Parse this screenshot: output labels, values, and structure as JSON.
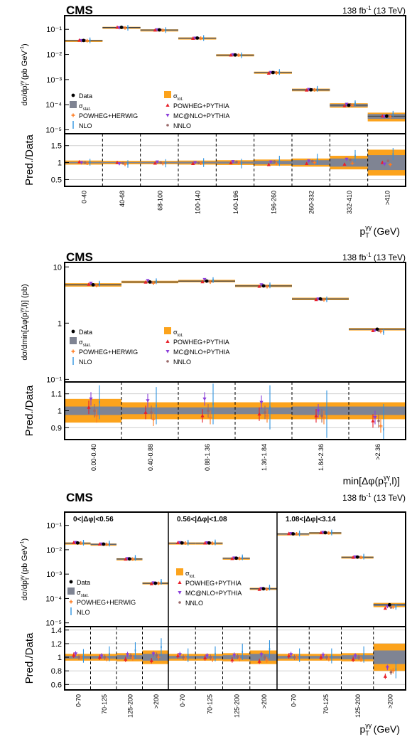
{
  "colors": {
    "tot": "#fca31c",
    "stat": "#7f8493",
    "herwig": "#ff7b1f",
    "nlo": "#2e93e0",
    "powpy": "#e8202a",
    "mcnlo": "#8b3fd9",
    "nnlo": "#9a6a6a",
    "data": "#000000",
    "grid": "#cfcfcf"
  },
  "legend": {
    "data": "Data",
    "tot": "σ",
    "tot_sub": "tot.",
    "stat": "σ",
    "stat_sub": "stat.",
    "powheg_herwig": "POWHEG+HERWIG",
    "powheg_pythia": "POWHEG+PYTHIA",
    "nlo": "NLO",
    "mcnlo": "MC@NLO+PYTHIA",
    "nnlo": "NNLO"
  },
  "chart_data": [
    {
      "type": "line",
      "experiment": "CMS",
      "lumi": "138 fb",
      "lumi_sup": "-1",
      "energy": " (13 TeV)",
      "ylabel": "dσ/dp",
      "ylabel_sub": "T",
      "ylabel_sup": "γγ",
      "ylabel_units": " (pb GeV",
      "ylabel_units_sup": "-1",
      "ylabel_close": ")",
      "ratio_ylabel": "Pred./Data",
      "xlabel": "p",
      "xlabel_sub": "T",
      "xlabel_sup": "γγ",
      "xlabel_units": " (GeV)",
      "yscale": "log",
      "ylim": [
        7e-06,
        0.35
      ],
      "yticks": [
        "10⁻¹",
        "10⁻²",
        "10⁻³",
        "10⁻⁴",
        "10⁻⁵"
      ],
      "ratio_ylim": [
        0.3,
        1.85
      ],
      "ratio_yticks": [
        "1.5",
        "1",
        "0.5"
      ],
      "categories": [
        "0-40",
        "40-68",
        "68-100",
        "100-140",
        "140-196",
        "196-260",
        "260-332",
        "332-410",
        ">410"
      ],
      "data": [
        0.036,
        0.12,
        0.095,
        0.045,
        0.0095,
        0.0019,
        0.00039,
        9.5e-05,
        3.5e-05
      ],
      "tot_unc_rel": [
        0.06,
        0.05,
        0.05,
        0.06,
        0.07,
        0.09,
        0.12,
        0.2,
        0.38
      ],
      "stat_unc_rel": [
        0.02,
        0.015,
        0.02,
        0.025,
        0.03,
        0.05,
        0.07,
        0.12,
        0.22
      ],
      "series": [
        {
          "name": "POWHEG+HERWIG",
          "ratio": [
            0.98,
            0.95,
            0.97,
            0.98,
            1.0,
            0.97,
            1.0,
            0.98,
            0.94
          ]
        },
        {
          "name": "POWHEG+PYTHIA",
          "ratio": [
            1.02,
            1.0,
            0.98,
            0.97,
            0.99,
            0.94,
            0.97,
            0.95,
            1.0
          ]
        },
        {
          "name": "MC@NLO+PYTHIA",
          "ratio": [
            1.0,
            0.97,
            1.02,
            1.0,
            1.03,
            1.02,
            1.05,
            1.1,
            0.96
          ]
        },
        {
          "name": "NLO",
          "ratio": [
            1.01,
            0.96,
            0.98,
            1.0,
            0.97,
            1.05,
            1.1,
            1.2,
            1.25
          ]
        },
        {
          "name": "NNLO",
          "ratio": [
            1.0,
            0.98,
            1.0,
            0.99,
            1.02,
            1.03,
            1.04,
            1.08,
            1.05
          ]
        }
      ]
    },
    {
      "type": "line",
      "experiment": "CMS",
      "lumi": "138 fb",
      "lumi_sup": "-1",
      "energy": " (13 TeV)",
      "ylabel": "dσ/dmin[Δφ(p",
      "ylabel_sub": "T",
      "ylabel_sup": "γγ",
      "ylabel_units": ",l)] (pb)",
      "ylabel_units_sup": "",
      "ylabel_close": "",
      "ratio_ylabel": "Pred./Data",
      "xlabel": "min[Δφ(p",
      "xlabel_sub": "T",
      "xlabel_sup": "γγ",
      "xlabel_units": ",l)]",
      "yscale": "log",
      "ylim": [
        0.09,
        12
      ],
      "yticks": [
        "10",
        "1",
        "10⁻¹"
      ],
      "ratio_ylim": [
        0.83,
        1.17
      ],
      "ratio_yticks": [
        "1.1",
        "1",
        "0.9"
      ],
      "categories": [
        "0.00-0.40",
        "0.40-0.88",
        "0.88-1.36",
        "1.36-1.84",
        "1.84-2.36",
        ">2.36"
      ],
      "data": [
        4.8,
        5.4,
        5.6,
        4.6,
        2.7,
        0.78
      ],
      "tot_unc_rel": [
        0.07,
        0.05,
        0.05,
        0.05,
        0.05,
        0.05
      ],
      "stat_unc_rel": [
        0.025,
        0.02,
        0.02,
        0.02,
        0.025,
        0.025
      ],
      "series": [
        {
          "name": "POWHEG+HERWIG",
          "ratio": [
            0.97,
            0.95,
            0.96,
            0.97,
            0.96,
            0.91
          ]
        },
        {
          "name": "POWHEG+PYTHIA",
          "ratio": [
            1.02,
            0.99,
            0.97,
            0.98,
            0.97,
            0.94
          ]
        },
        {
          "name": "MC@NLO+PYTHIA",
          "ratio": [
            1.07,
            1.06,
            1.07,
            1.05,
            1.0,
            0.96
          ]
        },
        {
          "name": "NLO",
          "ratio": [
            1.05,
            1.03,
            1.04,
            1.02,
            0.98,
            0.89
          ]
        },
        {
          "name": "NNLO",
          "ratio": [
            1.0,
            0.99,
            1.0,
            0.99,
            0.97,
            0.94
          ]
        }
      ]
    },
    {
      "type": "line",
      "experiment": "CMS",
      "lumi": "138 fb",
      "lumi_sup": "-1",
      "energy": " (13 TeV)",
      "ylabel": "dσ/dp",
      "ylabel_sub": "T",
      "ylabel_sup": "γγ",
      "ylabel_units": " (pb GeV",
      "ylabel_units_sup": "-1",
      "ylabel_close": ")",
      "ratio_ylabel": "Pred./Data",
      "xlabel": "p",
      "xlabel_sub": "T",
      "xlabel_sup": "γγ",
      "xlabel_units": " (GeV)",
      "yscale": "log",
      "ylim": [
        7e-06,
        0.35
      ],
      "yticks": [
        "10⁻¹",
        "10⁻²",
        "10⁻³",
        "10⁻⁴",
        "10⁻⁵"
      ],
      "ratio_ylim": [
        0.52,
        1.45
      ],
      "ratio_yticks": [
        "1.4",
        "1.2",
        "1",
        "0.8",
        "0.6"
      ],
      "regions": [
        {
          "label": "0<|Δφ|<0.56",
          "categories": [
            "0-70",
            "70-125",
            "125-200",
            ">200"
          ],
          "data": [
            0.019,
            0.017,
            0.0042,
            0.00042
          ],
          "tot_unc_rel": [
            0.05,
            0.05,
            0.06,
            0.1
          ],
          "stat_unc_rel": [
            0.02,
            0.02,
            0.03,
            0.05
          ],
          "series": [
            {
              "name": "POWHEG+HERWIG",
              "ratio": [
                1.0,
                0.98,
                0.99,
                1.0
              ]
            },
            {
              "name": "POWHEG+PYTHIA",
              "ratio": [
                1.03,
                1.0,
                0.97,
                0.95
              ]
            },
            {
              "name": "MC@NLO+PYTHIA",
              "ratio": [
                1.05,
                1.02,
                1.04,
                1.05
              ]
            },
            {
              "name": "NLO",
              "ratio": [
                1.02,
                1.05,
                1.1,
                1.15
              ]
            },
            {
              "name": "NNLO",
              "ratio": [
                1.0,
                1.0,
                1.02,
                1.03
              ]
            }
          ]
        },
        {
          "label": "0.56<|Δφ|<1.08",
          "categories": [
            "0-70",
            "70-125",
            "125-200",
            ">200"
          ],
          "data": [
            0.019,
            0.019,
            0.0045,
            0.00025
          ],
          "tot_unc_rel": [
            0.05,
            0.05,
            0.06,
            0.1
          ],
          "stat_unc_rel": [
            0.02,
            0.02,
            0.03,
            0.05
          ],
          "series": [
            {
              "name": "POWHEG+HERWIG",
              "ratio": [
                0.99,
                0.97,
                0.98,
                0.96
              ]
            },
            {
              "name": "POWHEG+PYTHIA",
              "ratio": [
                1.02,
                0.99,
                0.96,
                0.94
              ]
            },
            {
              "name": "MC@NLO+PYTHIA",
              "ratio": [
                1.04,
                1.02,
                1.03,
                1.04
              ]
            },
            {
              "name": "NLO",
              "ratio": [
                1.03,
                1.05,
                1.08,
                1.12
              ]
            },
            {
              "name": "NNLO",
              "ratio": [
                1.0,
                1.0,
                1.01,
                1.0
              ]
            }
          ]
        },
        {
          "label": "1.08<|Δφ|<3.14",
          "categories": [
            "0-70",
            "70-125",
            "125-200",
            ">200"
          ],
          "data": [
            0.045,
            0.05,
            0.005,
            5.5e-05
          ],
          "tot_unc_rel": [
            0.05,
            0.05,
            0.06,
            0.2
          ],
          "stat_unc_rel": [
            0.02,
            0.02,
            0.03,
            0.1
          ],
          "series": [
            {
              "name": "POWHEG+HERWIG",
              "ratio": [
                1.0,
                0.98,
                0.97,
                0.8
              ]
            },
            {
              "name": "POWHEG+PYTHIA",
              "ratio": [
                1.02,
                1.0,
                0.97,
                0.72
              ]
            },
            {
              "name": "MC@NLO+PYTHIA",
              "ratio": [
                1.04,
                1.03,
                1.02,
                0.85
              ]
            },
            {
              "name": "NLO",
              "ratio": [
                1.03,
                1.02,
                1.04,
                0.82
              ]
            },
            {
              "name": "NNLO",
              "ratio": [
                1.0,
                1.0,
                1.0,
                0.78
              ]
            }
          ]
        }
      ]
    }
  ]
}
